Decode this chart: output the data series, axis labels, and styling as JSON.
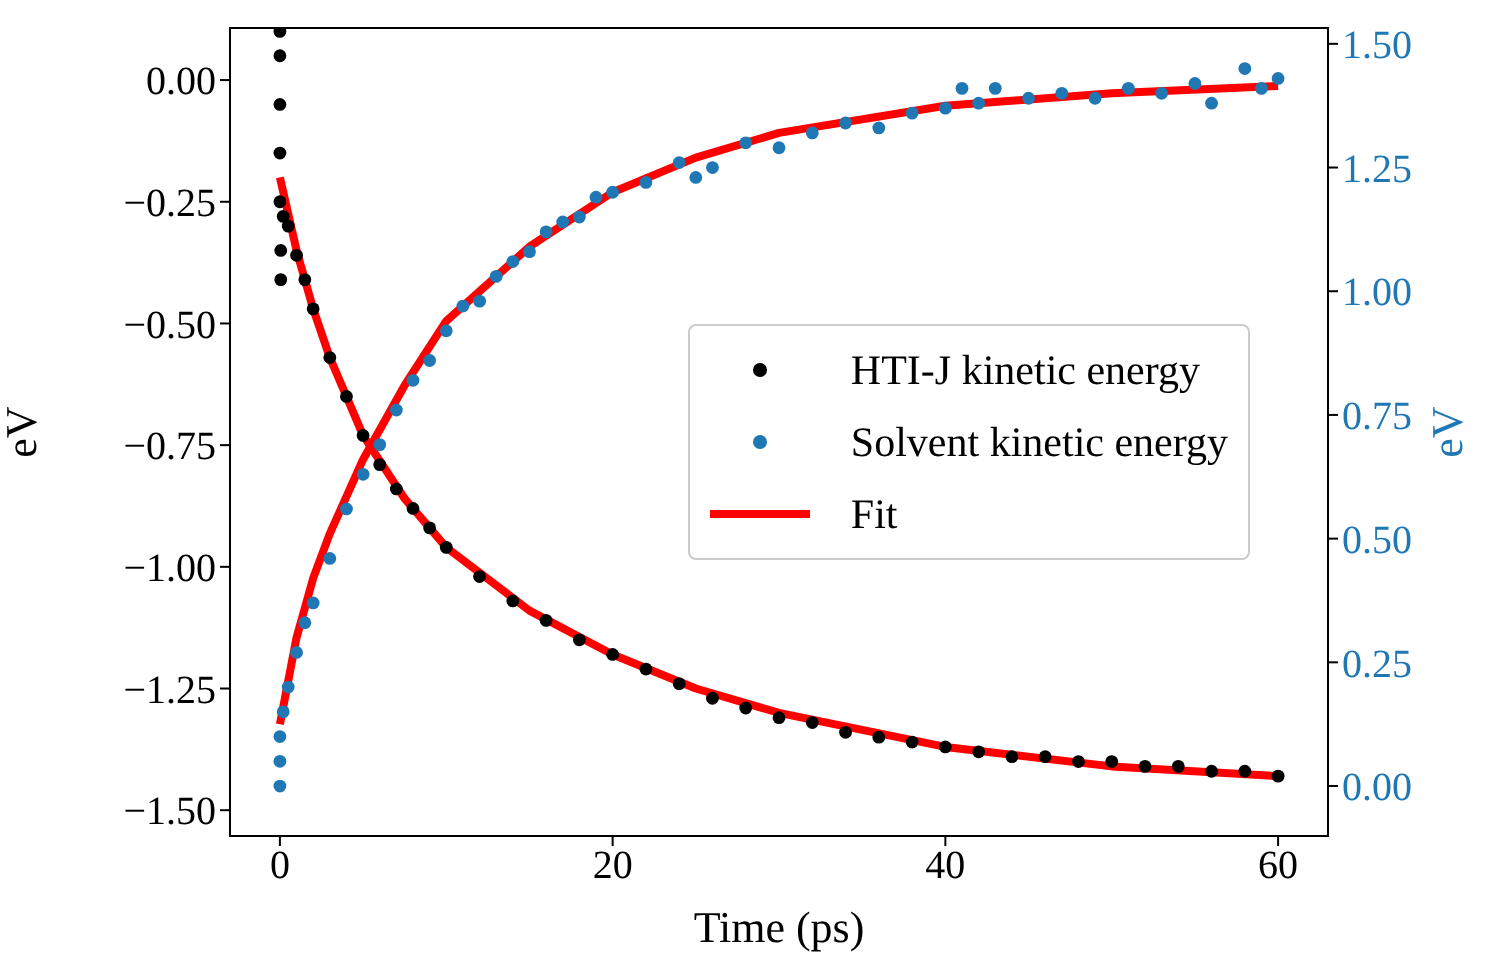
{
  "chart_data": {
    "type": "scatter",
    "xlabel": "Time (ps)",
    "ylabel": "eV",
    "y2label": "eV",
    "xlim": [
      -3,
      63
    ],
    "xticks": [
      0,
      20,
      40,
      60
    ],
    "ylim": [
      -1.553,
      0.107
    ],
    "yticks": [
      {
        "value": 0,
        "label": "0.00"
      },
      {
        "value": -0.25,
        "label": "−0.25"
      },
      {
        "value": -0.5,
        "label": "−0.50"
      },
      {
        "value": -0.75,
        "label": "−0.75"
      },
      {
        "value": -1,
        "label": "−1.00"
      },
      {
        "value": -1.25,
        "label": "−1.25"
      },
      {
        "value": -1.5,
        "label": "−1.50"
      }
    ],
    "y2lim": [
      -0.101,
      1.532
    ],
    "y2ticks": [
      {
        "value": 0,
        "label": "0.00"
      },
      {
        "value": 0.25,
        "label": "0.25"
      },
      {
        "value": 0.5,
        "label": "0.50"
      },
      {
        "value": 0.75,
        "label": "0.75"
      },
      {
        "value": 1,
        "label": "1.00"
      },
      {
        "value": 1.25,
        "label": "1.25"
      },
      {
        "value": 1.5,
        "label": "1.50"
      }
    ],
    "legend": "right",
    "grid": false,
    "series": [
      {
        "name": "HTI-J kinetic energy",
        "marker": "circle",
        "color": "#000000",
        "x": [
          0,
          0,
          0,
          0,
          0,
          0.05,
          0.05,
          0.2,
          0.5,
          1,
          1.5,
          2,
          3,
          4,
          5,
          6,
          7,
          8,
          9,
          10,
          12,
          14,
          16,
          18,
          20,
          22,
          24,
          26,
          28,
          30,
          32,
          34,
          36,
          38,
          40,
          42,
          44,
          46,
          48,
          50,
          52,
          54,
          56,
          58,
          60
        ],
        "values": [
          0.1,
          0.05,
          -0.05,
          -0.15,
          -0.25,
          -0.35,
          -0.41,
          -0.28,
          -0.3,
          -0.36,
          -0.41,
          -0.47,
          -0.57,
          -0.65,
          -0.73,
          -0.79,
          -0.84,
          -0.88,
          -0.92,
          -0.96,
          -1.02,
          -1.07,
          -1.11,
          -1.15,
          -1.18,
          -1.21,
          -1.24,
          -1.27,
          -1.29,
          -1.31,
          -1.32,
          -1.34,
          -1.35,
          -1.36,
          -1.37,
          -1.38,
          -1.39,
          -1.39,
          -1.4,
          -1.4,
          -1.41,
          -1.41,
          -1.42,
          -1.42,
          -1.43
        ]
      },
      {
        "name": "Solvent kinetic energy",
        "marker": "circle",
        "axis": "y2",
        "color": "#1f77b4",
        "x": [
          0,
          0,
          0,
          0.2,
          0.5,
          1,
          1.5,
          2,
          3,
          4,
          5,
          6,
          7,
          8,
          9,
          10,
          11,
          12,
          13,
          14,
          15,
          16,
          17,
          18,
          19,
          20,
          22,
          24,
          25,
          26,
          28,
          30,
          32,
          34,
          36,
          38,
          40,
          41,
          42,
          43,
          45,
          47,
          49,
          51,
          53,
          55,
          56,
          58,
          59,
          60
        ],
        "values": [
          0,
          0.05,
          0.1,
          0.15,
          0.2,
          0.27,
          0.33,
          0.37,
          0.46,
          0.56,
          0.63,
          0.69,
          0.76,
          0.82,
          0.86,
          0.92,
          0.97,
          0.98,
          1.03,
          1.06,
          1.08,
          1.12,
          1.14,
          1.15,
          1.19,
          1.2,
          1.22,
          1.26,
          1.23,
          1.25,
          1.3,
          1.29,
          1.32,
          1.34,
          1.33,
          1.36,
          1.37,
          1.41,
          1.38,
          1.41,
          1.39,
          1.4,
          1.39,
          1.41,
          1.4,
          1.42,
          1.38,
          1.45,
          1.41,
          1.43
        ]
      },
      {
        "name": "Fit",
        "type": "line",
        "color": "#ff0000",
        "x": [
          0,
          1,
          2,
          3,
          5,
          7.5,
          10,
          15,
          20,
          25,
          30,
          40,
          50,
          60
        ],
        "values": [
          -0.2,
          -0.35,
          -0.47,
          -0.57,
          -0.73,
          -0.86,
          -0.96,
          -1.09,
          -1.18,
          -1.25,
          -1.3,
          -1.37,
          -1.41,
          -1.43
        ]
      },
      {
        "type": "line",
        "axis": "y2",
        "color": "#ff0000",
        "x": [
          0,
          1,
          2,
          3,
          5,
          7.5,
          10,
          15,
          20,
          25,
          30,
          40,
          50,
          60
        ],
        "values": [
          0.125,
          0.3,
          0.42,
          0.51,
          0.66,
          0.81,
          0.94,
          1.09,
          1.2,
          1.27,
          1.32,
          1.375,
          1.4,
          1.415
        ]
      }
    ]
  }
}
